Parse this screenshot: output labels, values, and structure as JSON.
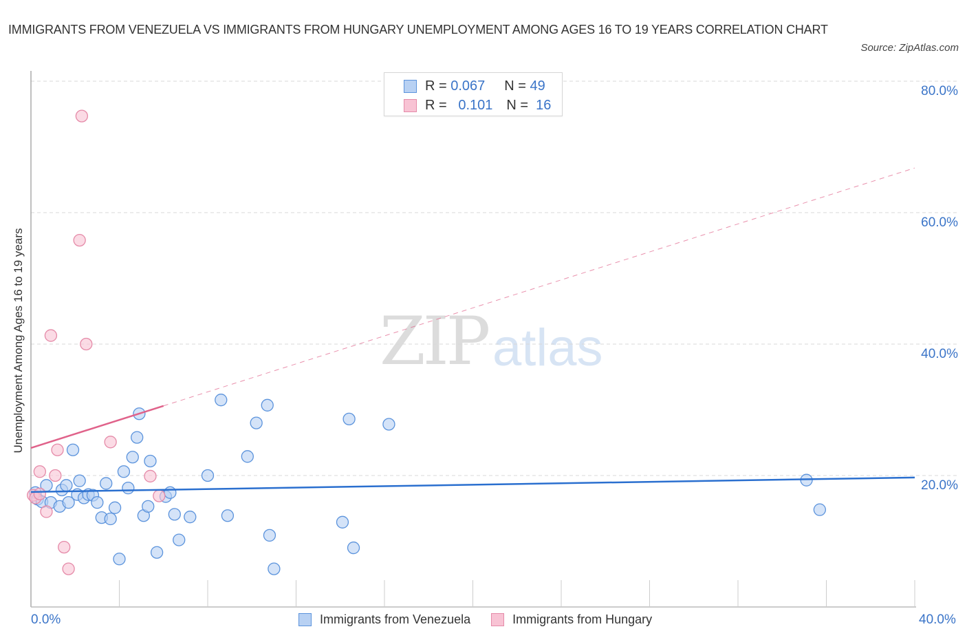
{
  "title": "IMMIGRANTS FROM VENEZUELA VS IMMIGRANTS FROM HUNGARY UNEMPLOYMENT AMONG AGES 16 TO 19 YEARS CORRELATION CHART",
  "source": "Source: ZipAtlas.com",
  "watermark": {
    "zip": "ZIP",
    "atlas": "atlas"
  },
  "legend": {
    "rows": [
      {
        "series": "Immigrants from Venezuela",
        "r_label": "R =",
        "r_value": "0.067",
        "n_label": "N =",
        "n_value": "49"
      },
      {
        "series": "Immigrants from Hungary",
        "r_label": "R =",
        "r_value": "0.101",
        "n_label": "N =",
        "n_value": "16"
      }
    ]
  },
  "colors": {
    "venezuela_fill": "#b8d1f3",
    "venezuela_stroke": "#5b93dc",
    "venezuela_line": "#2a6fcf",
    "hungary_fill": "#f8c3d4",
    "hungary_stroke": "#e58aa8",
    "hungary_line": "#e0628a",
    "tick_text": "#3a74c8",
    "grid": "#d9d9d9"
  },
  "chart_data": {
    "type": "scatter",
    "title": "IMMIGRANTS FROM VENEZUELA VS IMMIGRANTS FROM HUNGARY UNEMPLOYMENT AMONG AGES 16 TO 19 YEARS CORRELATION CHART",
    "xlabel": "",
    "ylabel": "Unemployment Among Ages 16 to 19 years",
    "xlim": [
      0,
      40
    ],
    "ylim": [
      0,
      80
    ],
    "x_tick_labels": [
      "0.0%",
      "40.0%"
    ],
    "y_tick_labels": [
      "20.0%",
      "40.0%",
      "60.0%",
      "80.0%"
    ],
    "y_ticks": [
      20,
      40,
      60,
      80
    ],
    "grid": true,
    "legend_position": "bottom-center",
    "series": [
      {
        "name": "Immigrants from Venezuela",
        "R": 0.067,
        "N": 49,
        "trend": {
          "x": [
            0,
            40
          ],
          "y": [
            17.5,
            19.7
          ],
          "style": "solid"
        },
        "points": [
          [
            0.2,
            17.4
          ],
          [
            0.3,
            16.4
          ],
          [
            0.5,
            16.0
          ],
          [
            0.7,
            18.5
          ],
          [
            0.9,
            15.9
          ],
          [
            1.3,
            15.3
          ],
          [
            1.4,
            17.8
          ],
          [
            1.6,
            18.5
          ],
          [
            1.7,
            15.9
          ],
          [
            1.9,
            23.9
          ],
          [
            2.1,
            17.1
          ],
          [
            2.2,
            19.2
          ],
          [
            2.4,
            16.6
          ],
          [
            2.6,
            17.1
          ],
          [
            2.8,
            17.0
          ],
          [
            3.0,
            15.9
          ],
          [
            3.2,
            13.6
          ],
          [
            3.4,
            18.8
          ],
          [
            3.6,
            13.4
          ],
          [
            3.8,
            15.1
          ],
          [
            4.0,
            7.3
          ],
          [
            4.2,
            20.6
          ],
          [
            4.4,
            18.1
          ],
          [
            4.6,
            22.8
          ],
          [
            4.8,
            25.8
          ],
          [
            4.9,
            29.4
          ],
          [
            5.1,
            13.9
          ],
          [
            5.3,
            15.3
          ],
          [
            5.4,
            22.2
          ],
          [
            5.7,
            8.3
          ],
          [
            6.1,
            16.8
          ],
          [
            6.3,
            17.4
          ],
          [
            6.5,
            14.1
          ],
          [
            6.7,
            10.2
          ],
          [
            7.2,
            13.7
          ],
          [
            8.0,
            20.0
          ],
          [
            8.6,
            31.5
          ],
          [
            8.9,
            13.9
          ],
          [
            9.8,
            22.9
          ],
          [
            10.2,
            28.0
          ],
          [
            10.7,
            30.7
          ],
          [
            10.8,
            10.9
          ],
          [
            11.0,
            5.8
          ],
          [
            14.1,
            12.9
          ],
          [
            14.4,
            28.6
          ],
          [
            14.6,
            9.0
          ],
          [
            16.2,
            27.8
          ],
          [
            35.1,
            19.3
          ],
          [
            35.7,
            14.8
          ]
        ]
      },
      {
        "name": "Immigrants from Hungary",
        "R": 0.101,
        "N": 16,
        "trend": {
          "x": [
            0,
            6.0
          ],
          "y": [
            24.2,
            30.6
          ],
          "style": "solid"
        },
        "trend_extended": {
          "x": [
            6.0,
            40
          ],
          "y": [
            30.6,
            66.8
          ],
          "style": "dashed"
        },
        "points": [
          [
            0.1,
            17.0
          ],
          [
            0.2,
            16.6
          ],
          [
            0.4,
            17.2
          ],
          [
            0.4,
            20.6
          ],
          [
            0.7,
            14.5
          ],
          [
            0.9,
            41.3
          ],
          [
            1.1,
            20.0
          ],
          [
            1.2,
            23.9
          ],
          [
            1.5,
            9.1
          ],
          [
            1.7,
            5.8
          ],
          [
            2.2,
            55.8
          ],
          [
            2.3,
            74.7
          ],
          [
            2.5,
            40.0
          ],
          [
            3.6,
            25.1
          ],
          [
            5.4,
            19.9
          ],
          [
            5.8,
            16.9
          ]
        ]
      }
    ]
  }
}
